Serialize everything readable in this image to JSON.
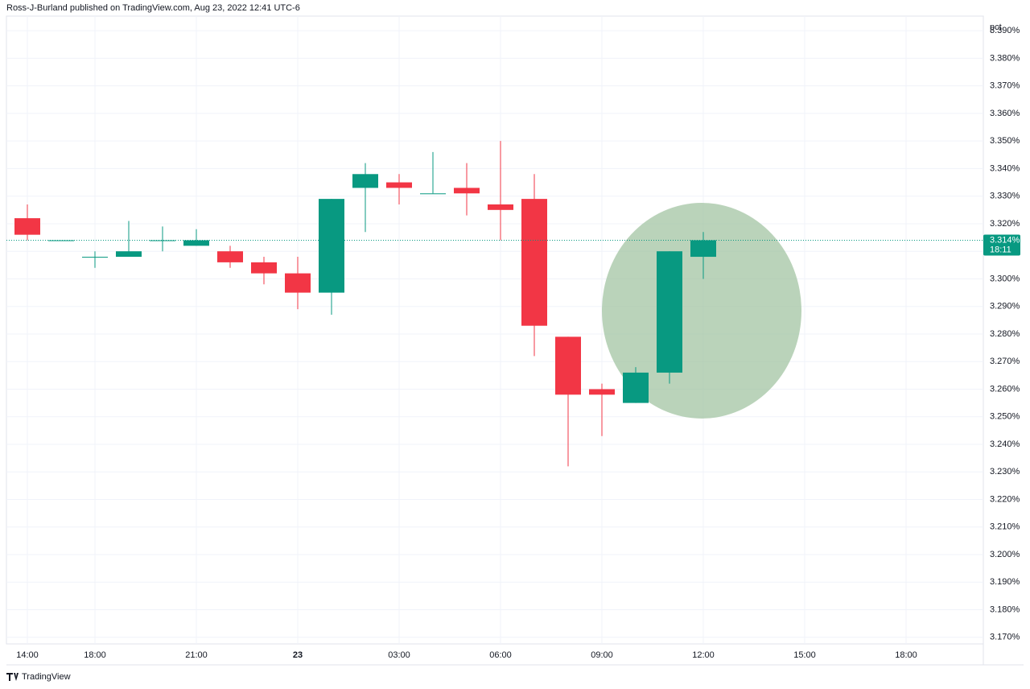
{
  "header": "Ross-J-Burland published on TradingView.com, Aug 23, 2022 12:41 UTC-6",
  "footer": "TradingView",
  "chart_data": {
    "type": "candlestick",
    "y_label": "pct",
    "categories": [
      "14:00",
      null,
      "18:00",
      null,
      null,
      "21:00",
      null,
      null,
      "23",
      null,
      null,
      "03:00",
      null,
      null,
      "06:00",
      null,
      null,
      "09:00",
      null,
      null,
      "12:00",
      null,
      null,
      "15:00",
      null,
      null,
      "18:00"
    ],
    "open": [
      3.322,
      3.314,
      3.308,
      3.308,
      3.314,
      3.312,
      3.31,
      3.306,
      3.302,
      3.295,
      3.333,
      3.335,
      3.331,
      3.333,
      3.327,
      3.329,
      3.279,
      3.26,
      3.255,
      3.266,
      3.308,
      null,
      null,
      null,
      null,
      null,
      null
    ],
    "high": [
      3.327,
      3.314,
      3.31,
      3.321,
      3.319,
      3.318,
      3.312,
      3.308,
      3.308,
      3.329,
      3.342,
      3.338,
      3.346,
      3.342,
      3.35,
      3.338,
      3.279,
      3.262,
      3.268,
      3.31,
      3.317,
      null,
      null,
      null,
      null,
      null,
      null
    ],
    "low": [
      3.314,
      3.314,
      3.304,
      3.308,
      3.31,
      3.312,
      3.304,
      3.298,
      3.289,
      3.287,
      3.317,
      3.327,
      3.331,
      3.323,
      3.314,
      3.272,
      3.232,
      3.243,
      3.255,
      3.262,
      3.3,
      null,
      null,
      null,
      null,
      null,
      null
    ],
    "close": [
      3.316,
      3.314,
      3.308,
      3.31,
      3.314,
      3.314,
      3.306,
      3.302,
      3.295,
      3.329,
      3.338,
      3.333,
      3.331,
      3.331,
      3.325,
      3.283,
      3.258,
      3.258,
      3.266,
      3.31,
      3.314,
      null,
      null,
      null,
      null,
      null,
      null
    ],
    "up_color": "#089981",
    "down_color": "#f23645",
    "last_price": {
      "value": 3.314,
      "label": "3.314%"
    },
    "countdown": "18:11",
    "ylim": [
      3.1676,
      3.3953
    ],
    "yticks": [
      {
        "value": 3.17,
        "label": "3.170%"
      },
      {
        "value": 3.18,
        "label": "3.180%"
      },
      {
        "value": 3.19,
        "label": "3.190%"
      },
      {
        "value": 3.2,
        "label": "3.200%"
      },
      {
        "value": 3.21,
        "label": "3.210%"
      },
      {
        "value": 3.22,
        "label": "3.220%"
      },
      {
        "value": 3.23,
        "label": "3.230%"
      },
      {
        "value": 3.24,
        "label": "3.240%"
      },
      {
        "value": 3.25,
        "label": "3.250%"
      },
      {
        "value": 3.26,
        "label": "3.260%"
      },
      {
        "value": 3.27,
        "label": "3.270%"
      },
      {
        "value": 3.28,
        "label": "3.280%"
      },
      {
        "value": 3.29,
        "label": "3.290%"
      },
      {
        "value": 3.3,
        "label": "3.300%"
      },
      {
        "value": 3.31,
        "label": "3.310%"
      },
      {
        "value": 3.32,
        "label": "3.320%"
      },
      {
        "value": 3.33,
        "label": "3.330%"
      },
      {
        "value": 3.34,
        "label": "3.340%"
      },
      {
        "value": 3.35,
        "label": "3.350%"
      },
      {
        "value": 3.36,
        "label": "3.360%"
      },
      {
        "value": 3.37,
        "label": "3.370%"
      },
      {
        "value": 3.38,
        "label": "3.380%"
      },
      {
        "value": 3.39,
        "label": "3.390%"
      }
    ],
    "grid": true
  }
}
